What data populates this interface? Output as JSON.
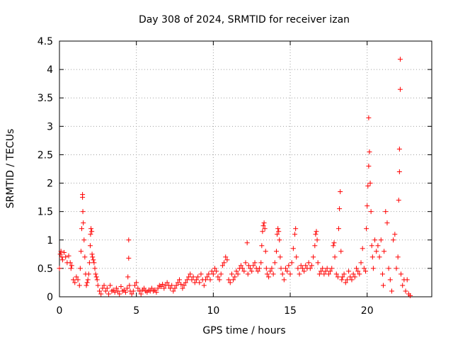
{
  "chart_data": {
    "type": "scatter",
    "title": "Day 308 of 2024, SRMTID for receiver izan",
    "xlabel": "GPS time / hours",
    "ylabel": "SRMTID / TECUs",
    "xlim": [
      0,
      24.2
    ],
    "ylim": [
      0,
      4.5
    ],
    "x_ticks": [
      0,
      5,
      10,
      15,
      20
    ],
    "x_tick_labels": [
      "0",
      "5",
      "10",
      "15",
      "20"
    ],
    "y_ticks": [
      0,
      0.5,
      1,
      1.5,
      2,
      2.5,
      3,
      3.5,
      4,
      4.5
    ],
    "y_tick_labels": [
      "0",
      "0.5",
      "1",
      "1.5",
      "2",
      "2.5",
      "3",
      "3.5",
      "4",
      "4.5"
    ],
    "grid": true,
    "marker": "+",
    "color": "#ff0000",
    "series": [
      {
        "name": "izan",
        "points": [
          [
            0.0,
            0.5
          ],
          [
            0.05,
            0.75
          ],
          [
            0.1,
            0.8
          ],
          [
            0.15,
            0.7
          ],
          [
            0.2,
            0.65
          ],
          [
            0.3,
            0.78
          ],
          [
            0.4,
            0.7
          ],
          [
            0.5,
            0.6
          ],
          [
            0.6,
            0.72
          ],
          [
            0.7,
            0.6
          ],
          [
            0.75,
            0.5
          ],
          [
            0.8,
            0.55
          ],
          [
            0.9,
            0.3
          ],
          [
            1.0,
            0.25
          ],
          [
            1.1,
            0.35
          ],
          [
            1.2,
            0.3
          ],
          [
            1.3,
            0.2
          ],
          [
            1.35,
            0.5
          ],
          [
            1.4,
            0.8
          ],
          [
            1.45,
            1.2
          ],
          [
            1.5,
            1.8
          ],
          [
            1.5,
            1.75
          ],
          [
            1.52,
            1.5
          ],
          [
            1.55,
            1.3
          ],
          [
            1.6,
            1.0
          ],
          [
            1.65,
            0.7
          ],
          [
            1.7,
            0.4
          ],
          [
            1.75,
            0.2
          ],
          [
            1.8,
            0.25
          ],
          [
            1.85,
            0.3
          ],
          [
            1.9,
            0.4
          ],
          [
            1.95,
            0.6
          ],
          [
            2.0,
            0.9
          ],
          [
            2.02,
            1.1
          ],
          [
            2.05,
            1.2
          ],
          [
            2.1,
            1.15
          ],
          [
            2.12,
            0.75
          ],
          [
            2.15,
            0.7
          ],
          [
            2.2,
            0.65
          ],
          [
            2.25,
            0.6
          ],
          [
            2.3,
            0.5
          ],
          [
            2.35,
            0.4
          ],
          [
            2.4,
            0.35
          ],
          [
            2.45,
            0.3
          ],
          [
            2.5,
            0.2
          ],
          [
            2.6,
            0.1
          ],
          [
            2.7,
            0.05
          ],
          [
            2.8,
            0.15
          ],
          [
            2.9,
            0.2
          ],
          [
            3.0,
            0.1
          ],
          [
            3.1,
            0.15
          ],
          [
            3.2,
            0.05
          ],
          [
            3.3,
            0.2
          ],
          [
            3.4,
            0.1
          ],
          [
            3.5,
            0.12
          ],
          [
            3.6,
            0.08
          ],
          [
            3.7,
            0.15
          ],
          [
            3.8,
            0.1
          ],
          [
            3.9,
            0.05
          ],
          [
            4.0,
            0.18
          ],
          [
            4.1,
            0.1
          ],
          [
            4.2,
            0.12
          ],
          [
            4.3,
            0.08
          ],
          [
            4.4,
            0.15
          ],
          [
            4.45,
            0.35
          ],
          [
            4.5,
            1.0
          ],
          [
            4.5,
            0.68
          ],
          [
            4.55,
            0.2
          ],
          [
            4.6,
            0.1
          ],
          [
            4.7,
            0.05
          ],
          [
            4.8,
            0.1
          ],
          [
            4.9,
            0.2
          ],
          [
            5.0,
            0.25
          ],
          [
            5.1,
            0.15
          ],
          [
            5.2,
            0.1
          ],
          [
            5.3,
            0.05
          ],
          [
            5.4,
            0.12
          ],
          [
            5.5,
            0.15
          ],
          [
            5.6,
            0.1
          ],
          [
            5.7,
            0.08
          ],
          [
            5.8,
            0.12
          ],
          [
            5.9,
            0.1
          ],
          [
            6.0,
            0.15
          ],
          [
            6.1,
            0.1
          ],
          [
            6.2,
            0.12
          ],
          [
            6.3,
            0.08
          ],
          [
            6.4,
            0.15
          ],
          [
            6.5,
            0.2
          ],
          [
            6.6,
            0.18
          ],
          [
            6.7,
            0.22
          ],
          [
            6.8,
            0.15
          ],
          [
            6.9,
            0.2
          ],
          [
            7.0,
            0.25
          ],
          [
            7.1,
            0.2
          ],
          [
            7.2,
            0.15
          ],
          [
            7.3,
            0.2
          ],
          [
            7.4,
            0.1
          ],
          [
            7.5,
            0.15
          ],
          [
            7.6,
            0.2
          ],
          [
            7.7,
            0.25
          ],
          [
            7.8,
            0.3
          ],
          [
            7.9,
            0.22
          ],
          [
            8.0,
            0.15
          ],
          [
            8.1,
            0.2
          ],
          [
            8.2,
            0.25
          ],
          [
            8.3,
            0.3
          ],
          [
            8.4,
            0.35
          ],
          [
            8.5,
            0.4
          ],
          [
            8.6,
            0.3
          ],
          [
            8.7,
            0.35
          ],
          [
            8.8,
            0.25
          ],
          [
            8.9,
            0.3
          ],
          [
            9.0,
            0.35
          ],
          [
            9.1,
            0.25
          ],
          [
            9.2,
            0.4
          ],
          [
            9.3,
            0.3
          ],
          [
            9.4,
            0.2
          ],
          [
            9.5,
            0.3
          ],
          [
            9.6,
            0.35
          ],
          [
            9.7,
            0.4
          ],
          [
            9.8,
            0.3
          ],
          [
            9.9,
            0.45
          ],
          [
            10.0,
            0.4
          ],
          [
            10.1,
            0.5
          ],
          [
            10.2,
            0.45
          ],
          [
            10.3,
            0.35
          ],
          [
            10.4,
            0.3
          ],
          [
            10.5,
            0.4
          ],
          [
            10.6,
            0.55
          ],
          [
            10.7,
            0.6
          ],
          [
            10.8,
            0.7
          ],
          [
            10.9,
            0.65
          ],
          [
            11.0,
            0.3
          ],
          [
            11.1,
            0.25
          ],
          [
            11.2,
            0.4
          ],
          [
            11.3,
            0.3
          ],
          [
            11.4,
            0.35
          ],
          [
            11.5,
            0.45
          ],
          [
            11.6,
            0.4
          ],
          [
            11.7,
            0.5
          ],
          [
            11.8,
            0.55
          ],
          [
            11.9,
            0.5
          ],
          [
            12.0,
            0.45
          ],
          [
            12.1,
            0.6
          ],
          [
            12.2,
            0.95
          ],
          [
            12.25,
            0.4
          ],
          [
            12.3,
            0.55
          ],
          [
            12.4,
            0.5
          ],
          [
            12.5,
            0.45
          ],
          [
            12.6,
            0.55
          ],
          [
            12.7,
            0.6
          ],
          [
            12.8,
            0.5
          ],
          [
            12.9,
            0.45
          ],
          [
            13.0,
            0.5
          ],
          [
            13.1,
            0.6
          ],
          [
            13.15,
            0.9
          ],
          [
            13.2,
            1.15
          ],
          [
            13.25,
            1.25
          ],
          [
            13.3,
            1.3
          ],
          [
            13.35,
            1.2
          ],
          [
            13.4,
            0.8
          ],
          [
            13.45,
            0.5
          ],
          [
            13.5,
            0.4
          ],
          [
            13.6,
            0.35
          ],
          [
            13.7,
            0.45
          ],
          [
            13.8,
            0.5
          ],
          [
            13.9,
            0.4
          ],
          [
            14.0,
            0.6
          ],
          [
            14.1,
            0.8
          ],
          [
            14.15,
            1.1
          ],
          [
            14.2,
            1.2
          ],
          [
            14.25,
            1.15
          ],
          [
            14.3,
            1.0
          ],
          [
            14.35,
            0.7
          ],
          [
            14.4,
            0.5
          ],
          [
            14.5,
            0.4
          ],
          [
            14.6,
            0.3
          ],
          [
            14.7,
            0.5
          ],
          [
            14.8,
            0.45
          ],
          [
            14.9,
            0.55
          ],
          [
            15.0,
            0.4
          ],
          [
            15.1,
            0.6
          ],
          [
            15.2,
            0.85
          ],
          [
            15.3,
            1.1
          ],
          [
            15.35,
            1.2
          ],
          [
            15.4,
            0.7
          ],
          [
            15.5,
            0.5
          ],
          [
            15.6,
            0.4
          ],
          [
            15.7,
            0.55
          ],
          [
            15.8,
            0.5
          ],
          [
            15.9,
            0.45
          ],
          [
            16.0,
            0.55
          ],
          [
            16.1,
            0.5
          ],
          [
            16.2,
            0.6
          ],
          [
            16.3,
            0.5
          ],
          [
            16.4,
            0.55
          ],
          [
            16.5,
            0.7
          ],
          [
            16.6,
            0.9
          ],
          [
            16.65,
            1.1
          ],
          [
            16.7,
            1.15
          ],
          [
            16.75,
            1.0
          ],
          [
            16.8,
            0.6
          ],
          [
            16.9,
            0.4
          ],
          [
            17.0,
            0.45
          ],
          [
            17.1,
            0.5
          ],
          [
            17.2,
            0.4
          ],
          [
            17.3,
            0.45
          ],
          [
            17.4,
            0.5
          ],
          [
            17.5,
            0.4
          ],
          [
            17.6,
            0.45
          ],
          [
            17.7,
            0.5
          ],
          [
            17.8,
            0.9
          ],
          [
            17.85,
            0.95
          ],
          [
            17.9,
            0.7
          ],
          [
            18.0,
            0.4
          ],
          [
            18.1,
            0.35
          ],
          [
            18.15,
            1.2
          ],
          [
            18.2,
            1.55
          ],
          [
            18.25,
            1.85
          ],
          [
            18.3,
            0.8
          ],
          [
            18.35,
            0.3
          ],
          [
            18.4,
            0.35
          ],
          [
            18.5,
            0.4
          ],
          [
            18.6,
            0.25
          ],
          [
            18.7,
            0.3
          ],
          [
            18.8,
            0.45
          ],
          [
            18.9,
            0.35
          ],
          [
            19.0,
            0.3
          ],
          [
            19.1,
            0.4
          ],
          [
            19.2,
            0.35
          ],
          [
            19.3,
            0.5
          ],
          [
            19.4,
            0.45
          ],
          [
            19.5,
            0.4
          ],
          [
            19.6,
            0.6
          ],
          [
            19.7,
            0.85
          ],
          [
            19.8,
            0.5
          ],
          [
            19.9,
            0.45
          ],
          [
            19.95,
            1.2
          ],
          [
            20.0,
            1.6
          ],
          [
            20.05,
            1.95
          ],
          [
            20.1,
            2.3
          ],
          [
            20.1,
            3.15
          ],
          [
            20.15,
            2.55
          ],
          [
            20.2,
            2.0
          ],
          [
            20.25,
            1.5
          ],
          [
            20.3,
            0.9
          ],
          [
            20.35,
            0.7
          ],
          [
            20.4,
            0.5
          ],
          [
            20.5,
            1.0
          ],
          [
            20.6,
            0.8
          ],
          [
            20.7,
            0.9
          ],
          [
            20.8,
            0.7
          ],
          [
            20.9,
            1.0
          ],
          [
            21.0,
            0.4
          ],
          [
            21.05,
            0.2
          ],
          [
            21.1,
            0.8
          ],
          [
            21.2,
            1.5
          ],
          [
            21.3,
            1.3
          ],
          [
            21.4,
            0.5
          ],
          [
            21.5,
            0.3
          ],
          [
            21.6,
            0.1
          ],
          [
            21.7,
            1.0
          ],
          [
            21.8,
            1.1
          ],
          [
            21.9,
            0.5
          ],
          [
            22.0,
            0.7
          ],
          [
            22.05,
            1.7
          ],
          [
            22.1,
            2.2
          ],
          [
            22.1,
            2.6
          ],
          [
            22.15,
            3.65
          ],
          [
            22.15,
            4.18
          ],
          [
            22.2,
            0.4
          ],
          [
            22.3,
            0.2
          ],
          [
            22.4,
            0.3
          ],
          [
            22.5,
            0.1
          ],
          [
            22.6,
            0.3
          ],
          [
            22.7,
            0.05
          ],
          [
            22.8,
            0.02
          ]
        ]
      }
    ]
  }
}
